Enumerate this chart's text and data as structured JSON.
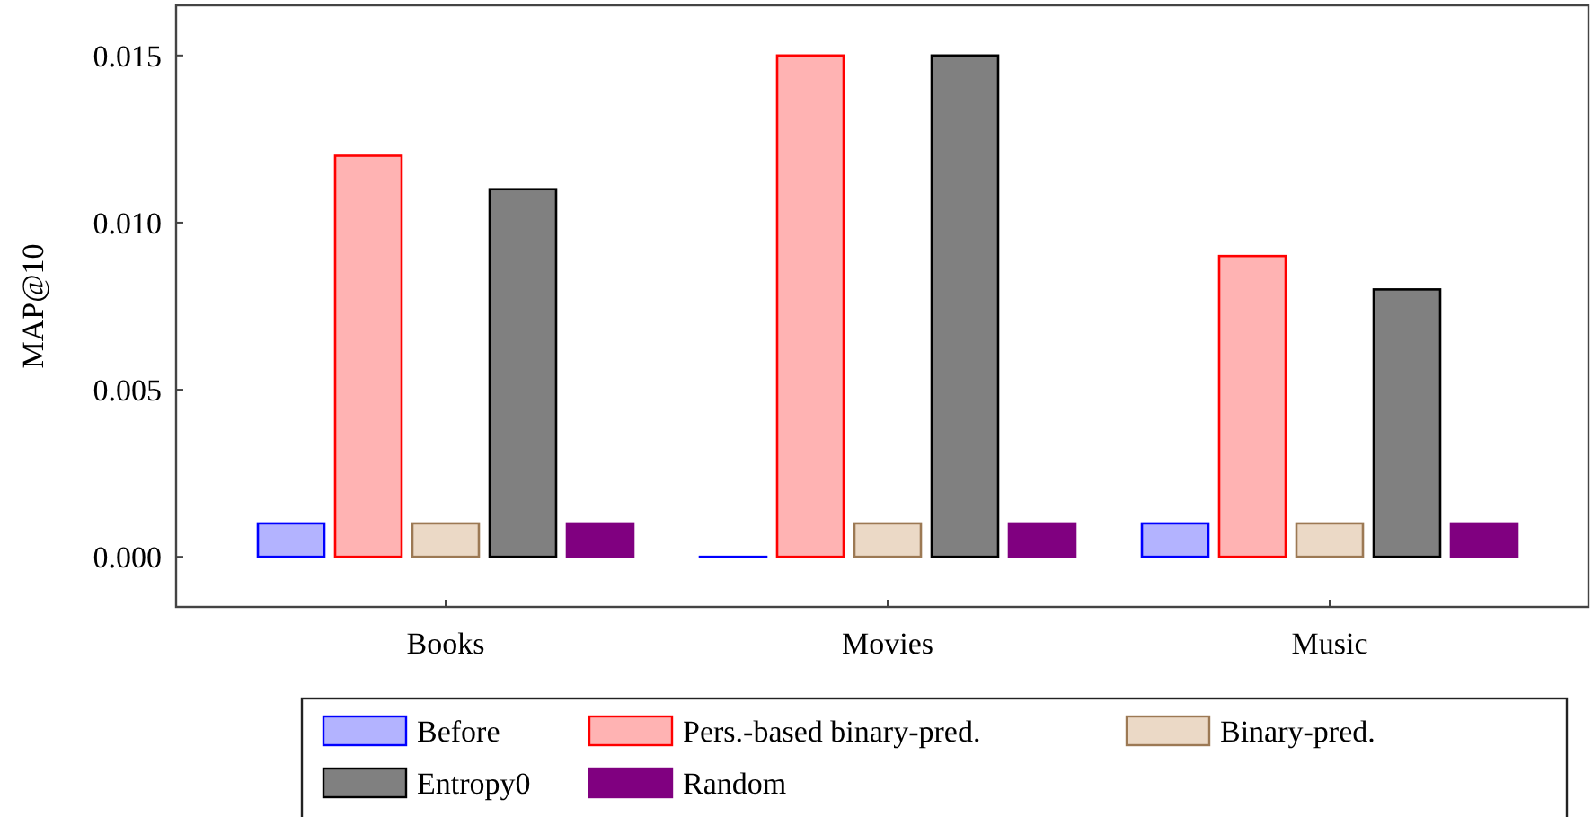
{
  "chart_data": {
    "type": "bar",
    "ylabel": "MAP@10",
    "categories": [
      "Books",
      "Movies",
      "Music"
    ],
    "series": [
      {
        "name": "Before",
        "color": "#b3b3ff",
        "values": [
          0.001,
          0,
          0.001
        ]
      },
      {
        "name": "Pers.-based binary-pred.",
        "color": "#ffb3b3",
        "values": [
          0.012,
          0.015,
          0.009
        ]
      },
      {
        "name": "Binary-pred.",
        "color": "#ebd9c6",
        "values": [
          0.001,
          0.001,
          0.001
        ]
      },
      {
        "name": "Entropy0",
        "color": "#808080",
        "values": [
          0.011,
          0.015,
          0.008
        ]
      },
      {
        "name": "Random",
        "color": "#800080",
        "values": [
          0.001,
          0.001,
          0.001
        ]
      }
    ],
    "ylim": [
      -0.0015,
      0.0165
    ],
    "yticks": [
      {
        "value": 0,
        "label": "0.000"
      },
      {
        "value": 0.005,
        "label": "0.005"
      },
      {
        "value": 0.01,
        "label": "0.010"
      },
      {
        "value": 0.015,
        "label": "0.015"
      }
    ],
    "grid": false,
    "legend": "bottom"
  }
}
